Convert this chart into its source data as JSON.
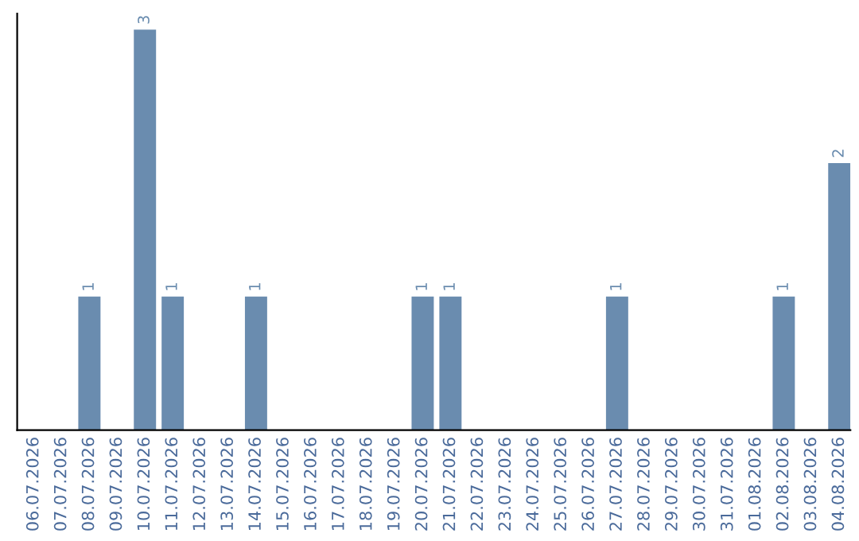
{
  "chart_data": {
    "type": "bar",
    "categories": [
      "06.07.2026",
      "07.07.2026",
      "08.07.2026",
      "09.07.2026",
      "10.07.2026",
      "11.07.2026",
      "12.07.2026",
      "13.07.2026",
      "14.07.2026",
      "15.07.2026",
      "16.07.2026",
      "17.07.2026",
      "18.07.2026",
      "19.07.2026",
      "20.07.2026",
      "21.07.2026",
      "22.07.2026",
      "23.07.2026",
      "24.07.2026",
      "25.07.2026",
      "26.07.2026",
      "27.07.2026",
      "28.07.2026",
      "29.07.2026",
      "30.07.2026",
      "31.07.2026",
      "01.08.2026",
      "02.08.2026",
      "03.08.2026",
      "04.08.2026"
    ],
    "values": [
      0,
      0,
      1,
      0,
      3,
      1,
      0,
      0,
      1,
      0,
      0,
      0,
      0,
      0,
      1,
      1,
      0,
      0,
      0,
      0,
      0,
      1,
      0,
      0,
      0,
      0,
      0,
      1,
      0,
      2
    ],
    "value_labels": [
      null,
      null,
      "1",
      null,
      "3",
      "1",
      null,
      null,
      "1",
      null,
      null,
      null,
      null,
      null,
      "1",
      "1",
      null,
      null,
      null,
      null,
      null,
      "1",
      null,
      null,
      null,
      null,
      null,
      "1",
      null,
      "2"
    ],
    "color": "#6a8caf",
    "tick_labels": "x",
    "grid": false,
    "legend": false
  }
}
